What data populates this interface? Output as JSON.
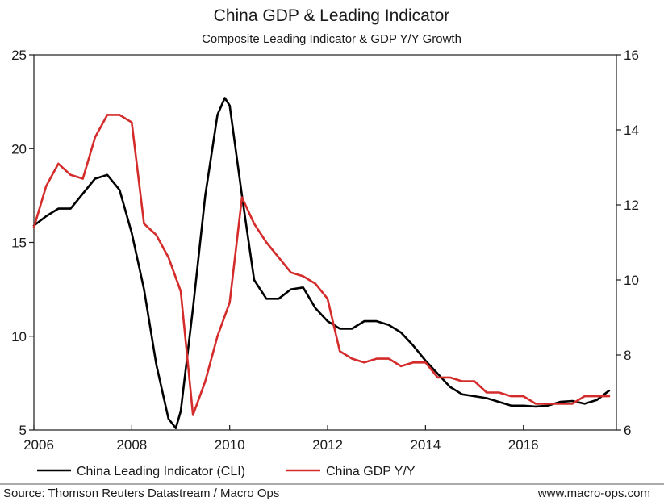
{
  "chart_data": {
    "type": "line",
    "title": "China GDP & Leading Indicator",
    "subtitle": "Composite Leading Indicator & GDP Y/Y Growth",
    "x_axis": {
      "range": [
        2006,
        2017.9
      ],
      "ticks": [
        2006,
        2008,
        2010,
        2012,
        2014,
        2016
      ],
      "tick_labels": [
        "2006",
        "2008",
        "2010",
        "2012",
        "2014",
        "2016"
      ]
    },
    "y_left": {
      "range": [
        5,
        25
      ],
      "ticks": [
        5,
        10,
        15,
        20,
        25
      ],
      "tick_labels": [
        "5",
        "10",
        "15",
        "20",
        "25"
      ]
    },
    "y_right": {
      "range": [
        6,
        16
      ],
      "ticks": [
        6,
        8,
        10,
        12,
        14,
        16
      ],
      "tick_labels": [
        "6",
        "8",
        "10",
        "12",
        "14",
        "16"
      ]
    },
    "series": [
      {
        "name": "China Leading Indicator (CLI)",
        "axis": "left",
        "color": "#000000",
        "x": [
          2006.0,
          2006.25,
          2006.5,
          2006.75,
          2007.0,
          2007.25,
          2007.5,
          2007.75,
          2008.0,
          2008.25,
          2008.5,
          2008.75,
          2008.9,
          2009.0,
          2009.25,
          2009.5,
          2009.75,
          2009.9,
          2010.0,
          2010.25,
          2010.5,
          2010.75,
          2011.0,
          2011.25,
          2011.5,
          2011.75,
          2012.0,
          2012.25,
          2012.5,
          2012.75,
          2013.0,
          2013.25,
          2013.5,
          2013.75,
          2014.0,
          2014.25,
          2014.5,
          2014.75,
          2015.0,
          2015.25,
          2015.5,
          2015.75,
          2016.0,
          2016.25,
          2016.5,
          2016.75,
          2017.0,
          2017.25,
          2017.5,
          2017.75
        ],
        "values": [
          15.9,
          16.4,
          16.8,
          16.8,
          17.6,
          18.4,
          18.6,
          17.8,
          15.5,
          12.5,
          8.5,
          5.6,
          5.1,
          6.0,
          11.5,
          17.5,
          21.8,
          22.7,
          22.3,
          17.5,
          13.0,
          12.0,
          12.0,
          12.5,
          12.6,
          11.5,
          10.8,
          10.4,
          10.4,
          10.8,
          10.8,
          10.6,
          10.2,
          9.5,
          8.7,
          8.0,
          7.3,
          6.9,
          6.8,
          6.7,
          6.5,
          6.3,
          6.3,
          6.25,
          6.3,
          6.5,
          6.55,
          6.4,
          6.6,
          7.1
        ]
      },
      {
        "name": "China GDP Y/Y",
        "axis": "right",
        "color": "#d42b2b",
        "x": [
          2006.0,
          2006.25,
          2006.5,
          2006.75,
          2007.0,
          2007.25,
          2007.5,
          2007.75,
          2008.0,
          2008.25,
          2008.5,
          2008.75,
          2009.0,
          2009.25,
          2009.5,
          2009.75,
          2010.0,
          2010.25,
          2010.5,
          2010.75,
          2011.0,
          2011.25,
          2011.5,
          2011.75,
          2012.0,
          2012.25,
          2012.5,
          2012.75,
          2013.0,
          2013.25,
          2013.5,
          2013.75,
          2014.0,
          2014.25,
          2014.5,
          2014.75,
          2015.0,
          2015.25,
          2015.5,
          2015.75,
          2016.0,
          2016.25,
          2016.5,
          2016.75,
          2017.0,
          2017.25,
          2017.5,
          2017.75
        ],
        "values": [
          11.4,
          12.5,
          13.1,
          12.8,
          12.7,
          13.8,
          14.4,
          14.4,
          14.2,
          11.5,
          11.2,
          10.6,
          9.7,
          6.4,
          7.3,
          8.5,
          9.4,
          12.2,
          11.5,
          11.0,
          10.6,
          10.2,
          10.1,
          9.9,
          9.5,
          8.1,
          7.9,
          7.8,
          7.9,
          7.9,
          7.7,
          7.8,
          7.8,
          7.4,
          7.4,
          7.3,
          7.3,
          7.0,
          7.0,
          6.9,
          6.9,
          6.7,
          6.7,
          6.7,
          6.7,
          6.9,
          6.9,
          6.9
        ]
      }
    ],
    "legend": {
      "placement": "bottom-left"
    },
    "grid": false
  },
  "footer": {
    "source": "Source: Thomson Reuters Datastream / Macro Ops",
    "website": "www.macro-ops.com"
  }
}
